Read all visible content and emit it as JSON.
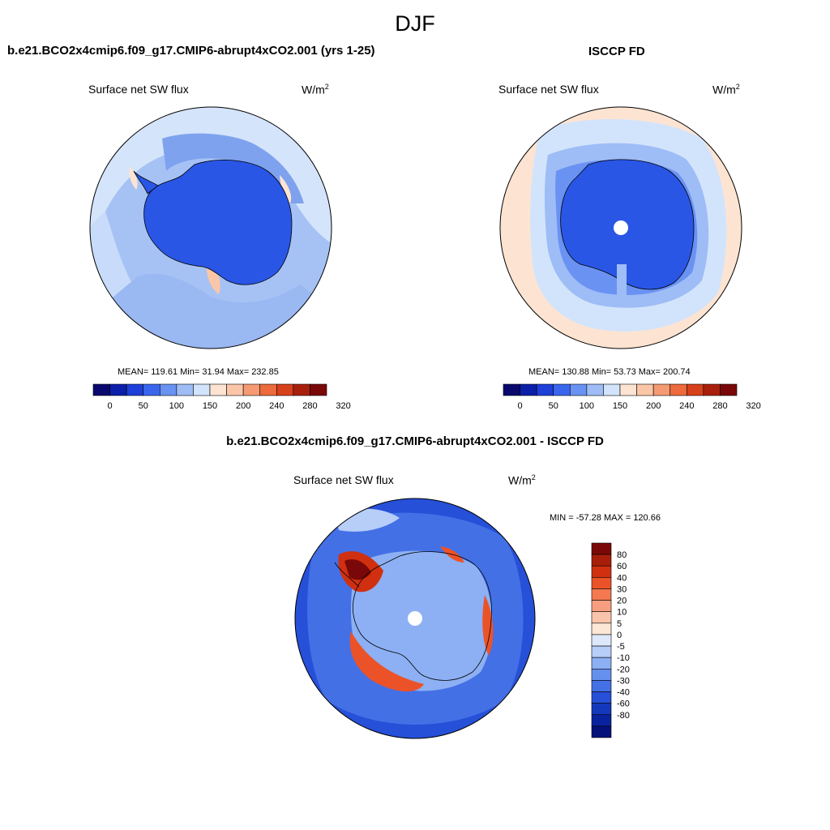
{
  "figure": {
    "title": "DJF"
  },
  "panels": [
    {
      "title": "b.e21.BCO2x4cmip6.f09_g17.CMIP6-abrupt4xCO2.001 (yrs 1-25)",
      "variable": "Surface net SW flux",
      "units_base": "W/m",
      "units_exp": "2",
      "stats": "MEAN= 119.61  Min=  31.94  Max= 232.85"
    },
    {
      "title": "ISCCP FD",
      "variable": "Surface net SW flux",
      "units_base": "W/m",
      "units_exp": "2",
      "stats": "MEAN= 130.88  Min=  53.73  Max= 200.74"
    },
    {
      "title": "b.e21.BCO2x4cmip6.f09_g17.CMIP6-abrupt4xCO2.001 - ISCCP FD",
      "variable": "Surface net SW flux",
      "units_base": "W/m",
      "units_exp": "2",
      "stats": "MIN = -57.28 MAX = 120.66"
    }
  ],
  "colorbar_abs": {
    "tick_labels": [
      "0",
      "50",
      "100",
      "150",
      "200",
      "240",
      "280",
      "320"
    ],
    "colors": [
      "#08086e",
      "#0b1fa8",
      "#1e3fd8",
      "#3a66ee",
      "#6a92f2",
      "#9ebcf6",
      "#d2e4fb",
      "#fde4d2",
      "#fbc6a8",
      "#f59a72",
      "#ec6a3c",
      "#d6401a",
      "#a8200c",
      "#7a0808"
    ]
  },
  "colorbar_diff": {
    "tick_labels": [
      "80",
      "60",
      "40",
      "30",
      "20",
      "10",
      "5",
      "0",
      "-5",
      "-10",
      "-20",
      "-30",
      "-40",
      "-60",
      "-80"
    ],
    "colors": [
      "#7a0808",
      "#a81e0a",
      "#d03010",
      "#ec5228",
      "#f57850",
      "#f89e80",
      "#fac4ac",
      "#fde6d6",
      "#dde9fb",
      "#b6cef8",
      "#8cb0f3",
      "#6690ee",
      "#4470e6",
      "#2650d8",
      "#1438bc",
      "#0a22a0",
      "#06107a"
    ]
  },
  "chart_data": [
    {
      "type": "heatmap",
      "title": "b.e21.BCO2x4cmip6.f09_g17.CMIP6-abrupt4xCO2.001 (yrs 1-25)",
      "variable": "Surface net SW flux",
      "units": "W/m2",
      "projection": "south polar stereographic",
      "mean": 119.61,
      "min": 31.94,
      "max": 232.85,
      "levels": [
        0,
        25,
        50,
        75,
        100,
        125,
        150,
        175,
        200,
        220,
        240,
        260,
        280,
        300,
        320
      ]
    },
    {
      "type": "heatmap",
      "title": "ISCCP FD",
      "variable": "Surface net SW flux",
      "units": "W/m2",
      "projection": "south polar stereographic",
      "mean": 130.88,
      "min": 53.73,
      "max": 200.74,
      "levels": [
        0,
        25,
        50,
        75,
        100,
        125,
        150,
        175,
        200,
        220,
        240,
        260,
        280,
        300,
        320
      ]
    },
    {
      "type": "heatmap",
      "title": "b.e21.BCO2x4cmip6.f09_g17.CMIP6-abrupt4xCO2.001 - ISCCP FD",
      "variable": "Surface net SW flux",
      "units": "W/m2",
      "projection": "south polar stereographic",
      "min": -57.28,
      "max": 120.66,
      "levels": [
        -80,
        -60,
        -40,
        -30,
        -20,
        -10,
        -5,
        0,
        5,
        10,
        20,
        30,
        40,
        60,
        80
      ]
    }
  ]
}
